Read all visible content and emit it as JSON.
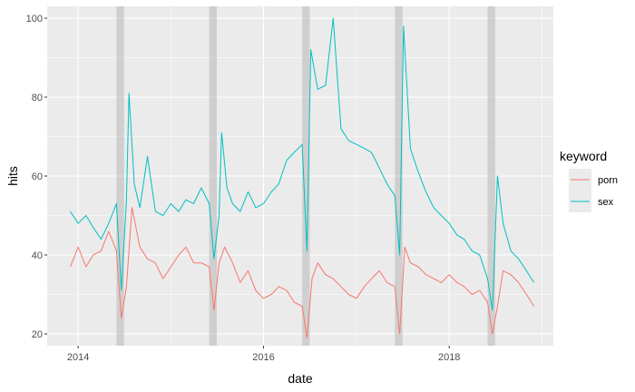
{
  "chart_data": {
    "type": "line",
    "xlabel": "date",
    "ylabel": "hits",
    "xlim": [
      "2013-09-01",
      "2019-02-15"
    ],
    "ylim": [
      17,
      103
    ],
    "x_ticks": [
      {
        "date": "2014-01-01",
        "label": "2014"
      },
      {
        "date": "2016-01-01",
        "label": "2016"
      },
      {
        "date": "2018-01-01",
        "label": "2018"
      }
    ],
    "y_ticks": [
      20,
      40,
      60,
      80,
      100
    ],
    "grid": true,
    "legend": {
      "title": "keyword",
      "placement": "right"
    },
    "shaded_periods": [
      [
        "2014-06-01",
        "2014-07-01"
      ],
      [
        "2015-06-01",
        "2015-07-01"
      ],
      [
        "2016-06-01",
        "2016-07-01"
      ],
      [
        "2017-06-01",
        "2017-07-01"
      ],
      [
        "2018-06-01",
        "2018-07-01"
      ]
    ],
    "series": [
      {
        "name": "porn",
        "color": "#F8766D",
        "points": [
          [
            "2013-12-01",
            37
          ],
          [
            "2014-01-01",
            42
          ],
          [
            "2014-02-01",
            37
          ],
          [
            "2014-03-01",
            40
          ],
          [
            "2014-04-01",
            41
          ],
          [
            "2014-05-01",
            46
          ],
          [
            "2014-06-01",
            41
          ],
          [
            "2014-06-20",
            24
          ],
          [
            "2014-07-10",
            32
          ],
          [
            "2014-08-01",
            52
          ],
          [
            "2014-09-01",
            42
          ],
          [
            "2014-10-01",
            39
          ],
          [
            "2014-11-01",
            38
          ],
          [
            "2014-12-01",
            34
          ],
          [
            "2015-01-01",
            37
          ],
          [
            "2015-02-01",
            40
          ],
          [
            "2015-03-01",
            42
          ],
          [
            "2015-04-01",
            38
          ],
          [
            "2015-05-01",
            38
          ],
          [
            "2015-06-01",
            37
          ],
          [
            "2015-06-20",
            26
          ],
          [
            "2015-07-10",
            38
          ],
          [
            "2015-08-01",
            42
          ],
          [
            "2015-09-01",
            38
          ],
          [
            "2015-10-01",
            33
          ],
          [
            "2015-11-01",
            36
          ],
          [
            "2015-12-01",
            31
          ],
          [
            "2016-01-01",
            29
          ],
          [
            "2016-02-01",
            30
          ],
          [
            "2016-03-01",
            32
          ],
          [
            "2016-04-01",
            31
          ],
          [
            "2016-05-01",
            28
          ],
          [
            "2016-06-01",
            27
          ],
          [
            "2016-06-20",
            19
          ],
          [
            "2016-07-10",
            34
          ],
          [
            "2016-08-01",
            38
          ],
          [
            "2016-09-01",
            35
          ],
          [
            "2016-10-01",
            34
          ],
          [
            "2016-11-01",
            32
          ],
          [
            "2016-12-01",
            30
          ],
          [
            "2017-01-01",
            29
          ],
          [
            "2017-02-01",
            32
          ],
          [
            "2017-03-01",
            34
          ],
          [
            "2017-04-01",
            36
          ],
          [
            "2017-05-01",
            33
          ],
          [
            "2017-06-01",
            32
          ],
          [
            "2017-06-20",
            20
          ],
          [
            "2017-07-10",
            42
          ],
          [
            "2017-08-01",
            38
          ],
          [
            "2017-09-01",
            37
          ],
          [
            "2017-10-01",
            35
          ],
          [
            "2017-11-01",
            34
          ],
          [
            "2017-12-01",
            33
          ],
          [
            "2018-01-01",
            35
          ],
          [
            "2018-02-01",
            33
          ],
          [
            "2018-03-01",
            32
          ],
          [
            "2018-04-01",
            30
          ],
          [
            "2018-05-01",
            31
          ],
          [
            "2018-06-01",
            28
          ],
          [
            "2018-06-20",
            20
          ],
          [
            "2018-07-10",
            27
          ],
          [
            "2018-08-01",
            36
          ],
          [
            "2018-09-01",
            35
          ],
          [
            "2018-10-01",
            33
          ],
          [
            "2018-11-01",
            30
          ],
          [
            "2018-12-01",
            27
          ]
        ]
      },
      {
        "name": "sex",
        "color": "#00BFC4",
        "points": [
          [
            "2013-12-01",
            51
          ],
          [
            "2014-01-01",
            48
          ],
          [
            "2014-02-01",
            50
          ],
          [
            "2014-03-01",
            47
          ],
          [
            "2014-04-01",
            44
          ],
          [
            "2014-05-01",
            48
          ],
          [
            "2014-06-01",
            53
          ],
          [
            "2014-06-20",
            31
          ],
          [
            "2014-07-10",
            54
          ],
          [
            "2014-07-20",
            81
          ],
          [
            "2014-08-10",
            58
          ],
          [
            "2014-09-01",
            52
          ],
          [
            "2014-10-01",
            65
          ],
          [
            "2014-11-01",
            51
          ],
          [
            "2014-12-01",
            50
          ],
          [
            "2015-01-01",
            53
          ],
          [
            "2015-02-01",
            51
          ],
          [
            "2015-03-01",
            54
          ],
          [
            "2015-04-01",
            53
          ],
          [
            "2015-05-01",
            57
          ],
          [
            "2015-06-01",
            53
          ],
          [
            "2015-06-20",
            39
          ],
          [
            "2015-07-10",
            50
          ],
          [
            "2015-07-20",
            71
          ],
          [
            "2015-08-10",
            57
          ],
          [
            "2015-09-01",
            53
          ],
          [
            "2015-10-01",
            51
          ],
          [
            "2015-11-01",
            56
          ],
          [
            "2015-12-01",
            52
          ],
          [
            "2016-01-01",
            53
          ],
          [
            "2016-02-01",
            56
          ],
          [
            "2016-03-01",
            58
          ],
          [
            "2016-04-01",
            64
          ],
          [
            "2016-05-01",
            66
          ],
          [
            "2016-06-01",
            68
          ],
          [
            "2016-06-20",
            41
          ],
          [
            "2016-07-05",
            92
          ],
          [
            "2016-08-01",
            82
          ],
          [
            "2016-09-01",
            83
          ],
          [
            "2016-10-01",
            100
          ],
          [
            "2016-11-01",
            72
          ],
          [
            "2016-12-01",
            69
          ],
          [
            "2017-01-01",
            68
          ],
          [
            "2017-02-01",
            67
          ],
          [
            "2017-03-01",
            66
          ],
          [
            "2017-04-01",
            62
          ],
          [
            "2017-05-01",
            58
          ],
          [
            "2017-06-01",
            55
          ],
          [
            "2017-06-20",
            40
          ],
          [
            "2017-07-05",
            98
          ],
          [
            "2017-08-01",
            67
          ],
          [
            "2017-09-01",
            61
          ],
          [
            "2017-10-01",
            56
          ],
          [
            "2017-11-01",
            52
          ],
          [
            "2017-12-01",
            50
          ],
          [
            "2018-01-01",
            48
          ],
          [
            "2018-02-01",
            45
          ],
          [
            "2018-03-01",
            44
          ],
          [
            "2018-04-01",
            41
          ],
          [
            "2018-05-01",
            40
          ],
          [
            "2018-06-01",
            34
          ],
          [
            "2018-06-20",
            26
          ],
          [
            "2018-07-10",
            60
          ],
          [
            "2018-08-01",
            48
          ],
          [
            "2018-09-01",
            41
          ],
          [
            "2018-10-01",
            39
          ],
          [
            "2018-11-01",
            36
          ],
          [
            "2018-12-01",
            33
          ]
        ]
      }
    ]
  }
}
